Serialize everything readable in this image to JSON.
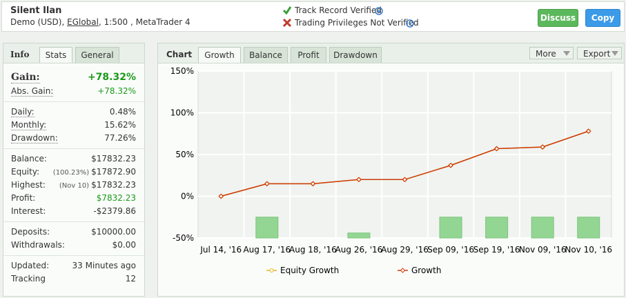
{
  "header": {
    "name": "Silent Ilan",
    "account": [
      "Demo (USD), ",
      "EGlobal",
      ", 1:500 , MetaTrader 4"
    ],
    "verified": "Track Record Verified",
    "not_verified": "Trading Privileges Not Verified",
    "buttons": [
      "Discuss",
      "Copy"
    ]
  },
  "stats": {
    "tabs": [
      "Info",
      "Stats",
      "General"
    ],
    "groups": [
      [
        {
          "label": "Gain:",
          "value": "+78.32%"
        },
        {
          "label": "Abs. Gain:",
          "value": "+78.32%"
        }
      ],
      [
        {
          "label": "Daily:",
          "value": "0.48%"
        },
        {
          "label": "Monthly:",
          "value": "15.62%"
        },
        {
          "label": "Drawdown:",
          "value": "77.26%"
        }
      ],
      [
        {
          "label": "Balance:",
          "value": "$17832.23"
        },
        {
          "label": "Equity:",
          "note": "(100.23%)",
          "value": "$17872.90"
        },
        {
          "label": "Highest:",
          "note": "(Nov 10)",
          "value": "$17832.23"
        },
        {
          "label": "Profit:",
          "value": "$7832.23"
        },
        {
          "label": "Interest:",
          "value": "-$2379.86"
        }
      ],
      [
        {
          "label": "Deposits:",
          "value": "$10000.00"
        },
        {
          "label": "Withdrawals:",
          "value": "$0.00"
        }
      ],
      [
        {
          "label": "Updated:",
          "value": "33 Minutes ago"
        },
        {
          "label": "Tracking",
          "value": "12"
        }
      ]
    ]
  },
  "chart_panel": {
    "title": "Chart",
    "tabs": [
      "Growth",
      "Balance",
      "Profit",
      "Drawdown"
    ],
    "menus": [
      "More",
      "Export"
    ]
  },
  "chart_data": {
    "type": "line",
    "categories": [
      "Jul 14, '16",
      "Aug 17, '16",
      "Aug 18, '16",
      "Aug 26, '16",
      "Aug 29, '16",
      "Sep 09, '16",
      "Sep 19, '16",
      "Nov 09, '16",
      "Nov 10, '16"
    ],
    "series": [
      {
        "name": "Equity Growth",
        "color": "#e6b422",
        "values": [
          0,
          15,
          15,
          20,
          20,
          37,
          57,
          59,
          78
        ]
      },
      {
        "name": "Growth",
        "color": "#cc3b0a",
        "values": [
          0,
          15,
          15,
          20,
          20,
          37,
          57,
          59,
          78
        ]
      }
    ],
    "bars": {
      "color": "#93d693",
      "values": [
        null,
        -25,
        null,
        -44,
        null,
        -25,
        -25,
        -25,
        -25
      ]
    },
    "ylim": [
      -50,
      150
    ],
    "yticks": [
      {
        "value": -50,
        "label": "-50%"
      },
      {
        "value": 0,
        "label": "0%"
      },
      {
        "value": 50,
        "label": "50%"
      },
      {
        "value": 100,
        "label": "100%"
      },
      {
        "value": 150,
        "label": "150%"
      }
    ],
    "grid": true
  }
}
